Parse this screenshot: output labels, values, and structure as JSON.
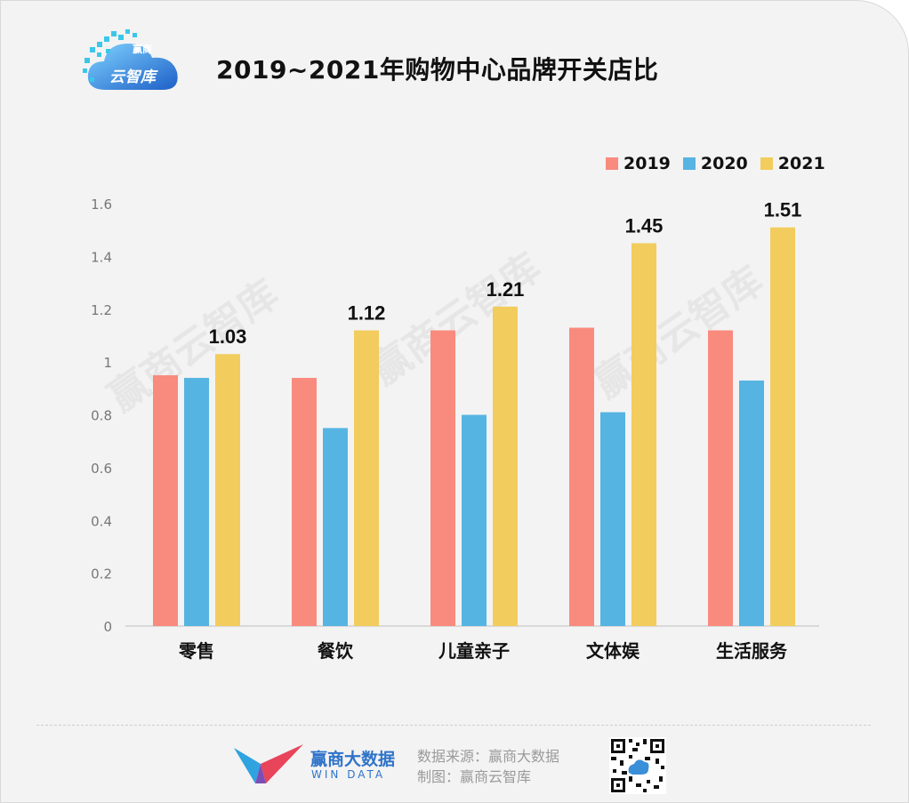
{
  "header": {
    "title": "2019~2021年购物中心品牌开关店比",
    "logo_text": "云智库",
    "logo_small": "赢商"
  },
  "legend": {
    "items": [
      {
        "label": "2019",
        "color": "#f98a7e"
      },
      {
        "label": "2020",
        "color": "#56b4e2"
      },
      {
        "label": "2021",
        "color": "#f2cc5c"
      }
    ]
  },
  "watermark": "赢商云智库",
  "chart_data": {
    "type": "bar",
    "title": "2019~2021年购物中心品牌开关店比",
    "categories": [
      "零售",
      "餐饮",
      "儿童亲子",
      "文体娱",
      "生活服务"
    ],
    "series": [
      {
        "name": "2019",
        "values": [
          0.95,
          0.94,
          1.12,
          1.13,
          1.12
        ]
      },
      {
        "name": "2020",
        "values": [
          0.94,
          0.75,
          0.8,
          0.81,
          0.93
        ]
      },
      {
        "name": "2021",
        "values": [
          1.03,
          1.12,
          1.21,
          1.45,
          1.51
        ]
      }
    ],
    "data_labels": {
      "series": "2021",
      "labels": [
        "1.03",
        "1.12",
        "1.21",
        "1.45",
        "1.51"
      ]
    },
    "yticks": [
      "0",
      "0.2",
      "0.4",
      "0.6",
      "0.8",
      "1",
      "1.2",
      "1.4",
      "1.6"
    ],
    "ylim": [
      0,
      1.6
    ],
    "xlabel": "",
    "ylabel": "",
    "legend_position": "top-right",
    "grid": false
  },
  "footer": {
    "brand_name": "赢商大数据",
    "brand_sub": "WIN DATA",
    "source_line": "数据来源：赢商大数据",
    "maker_line": "制图：赢商云智库"
  }
}
